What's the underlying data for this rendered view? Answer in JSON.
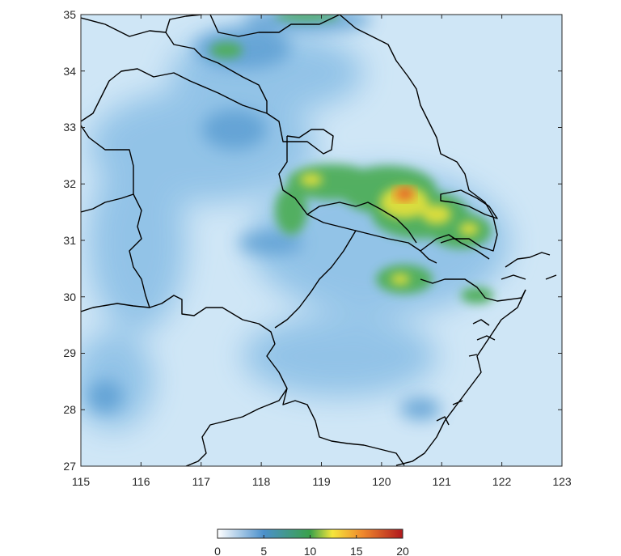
{
  "map": {
    "lon_range": [
      115,
      123
    ],
    "lat_range": [
      27,
      35
    ],
    "x_ticks": [
      "115",
      "116",
      "117",
      "118",
      "119",
      "120",
      "121",
      "122",
      "123"
    ],
    "y_ticks": [
      "35",
      "34",
      "33",
      "32",
      "31",
      "30",
      "29",
      "28",
      "27"
    ],
    "colors": {
      "background_low": "#d8ecf8",
      "field_mid": "#7fb8e2",
      "field_high": "#4a8fc9",
      "boundary": "#000000"
    }
  },
  "colorbar": {
    "ticks": [
      "0",
      "5",
      "10",
      "15",
      "20"
    ],
    "range": [
      0,
      20
    ],
    "stops": [
      "#ffffff",
      "#4b90cc",
      "#3aa14a",
      "#f5e63c",
      "#f08a2c",
      "#b0181e"
    ]
  }
}
